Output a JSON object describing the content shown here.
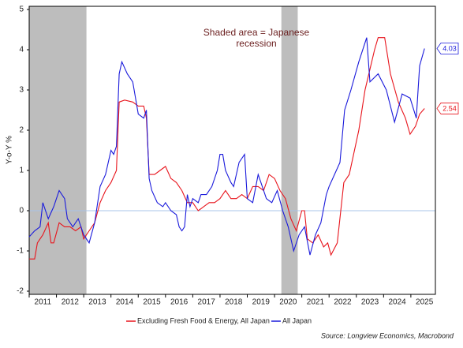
{
  "chart_data": {
    "type": "line",
    "y_label": "Y-o-Y %",
    "annotation_lines": [
      "Shaded area = Japanese",
      "recession"
    ],
    "source": "Source: Longview Economics, Macrobond",
    "xlim": [
      2011.0,
      2025.9
    ],
    "ylim": [
      -2,
      5
    ],
    "yticks": [
      -2,
      -1,
      0,
      1,
      2,
      3,
      4,
      5
    ],
    "xticks": [
      {
        "value": 2011.5,
        "label": "2011"
      },
      {
        "value": 2012.5,
        "label": "2012"
      },
      {
        "value": 2013.5,
        "label": "2013"
      },
      {
        "value": 2014.5,
        "label": "2014"
      },
      {
        "value": 2015.5,
        "label": "2015"
      },
      {
        "value": 2016.5,
        "label": "2016"
      },
      {
        "value": 2017.5,
        "label": "2017"
      },
      {
        "value": 2018.5,
        "label": "2018"
      },
      {
        "value": 2019.5,
        "label": "2019"
      },
      {
        "value": 2020.5,
        "label": "2020"
      },
      {
        "value": 2021.5,
        "label": "2021"
      },
      {
        "value": 2022.5,
        "label": "2022"
      },
      {
        "value": 2023.5,
        "label": "2023"
      },
      {
        "value": 2024.5,
        "label": "2024"
      },
      {
        "value": 2025.5,
        "label": "2025"
      }
    ],
    "recessions": [
      [
        2011.0,
        2013.1
      ],
      [
        2020.25,
        2020.85
      ]
    ],
    "recession_color": "#bdbdbd",
    "zero_line_color": "#a9c4e8",
    "series": [
      {
        "name": "Excluding Fresh Food & Energy, All Japan",
        "color": "#e8141c",
        "x": [
          2011.0,
          2011.2,
          2011.3,
          2011.5,
          2011.7,
          2011.8,
          2011.9,
          2012.1,
          2012.3,
          2012.5,
          2012.7,
          2012.9,
          2013.0,
          2013.2,
          2013.4,
          2013.6,
          2013.8,
          2014.0,
          2014.2,
          2014.3,
          2014.5,
          2014.8,
          2015.0,
          2015.2,
          2015.3,
          2015.4,
          2015.6,
          2015.8,
          2016.0,
          2016.2,
          2016.4,
          2016.6,
          2016.8,
          2017.0,
          2017.2,
          2017.4,
          2017.6,
          2017.8,
          2018.0,
          2018.2,
          2018.4,
          2018.6,
          2018.8,
          2019.0,
          2019.2,
          2019.4,
          2019.6,
          2019.8,
          2020.0,
          2020.2,
          2020.4,
          2020.6,
          2020.8,
          2021.0,
          2021.1,
          2021.2,
          2021.4,
          2021.6,
          2021.8,
          2021.95,
          2022.07,
          2022.3,
          2022.54,
          2022.74,
          2023.09,
          2023.32,
          2023.67,
          2023.8,
          2024.04,
          2024.25,
          2024.54,
          2024.8,
          2024.97,
          2025.17,
          2025.32,
          2025.5
        ],
        "values": [
          -1.2,
          -1.2,
          -0.8,
          -0.6,
          -0.3,
          -0.8,
          -0.8,
          -0.3,
          -0.4,
          -0.4,
          -0.5,
          -0.4,
          -0.7,
          -0.5,
          -0.3,
          0.2,
          0.5,
          0.7,
          1.0,
          2.7,
          2.75,
          2.7,
          2.6,
          2.6,
          2.3,
          0.9,
          0.9,
          1.0,
          1.1,
          0.8,
          0.7,
          0.5,
          0.2,
          0.2,
          0.0,
          0.1,
          0.2,
          0.2,
          0.3,
          0.5,
          0.3,
          0.3,
          0.4,
          0.3,
          0.6,
          0.6,
          0.5,
          0.9,
          0.8,
          0.5,
          0.3,
          -0.2,
          -0.5,
          0.0,
          0.0,
          -0.7,
          -0.8,
          -0.6,
          -0.9,
          -0.8,
          -1.1,
          -0.8,
          0.7,
          0.9,
          2.0,
          3.0,
          4.0,
          4.3,
          4.3,
          3.4,
          2.7,
          2.3,
          1.9,
          2.1,
          2.4,
          2.54
        ]
      },
      {
        "name": "All Japan",
        "color": "#1a1adb",
        "x": [
          2011.0,
          2011.2,
          2011.4,
          2011.5,
          2011.7,
          2011.9,
          2012.1,
          2012.3,
          2012.4,
          2012.6,
          2012.8,
          2013.0,
          2013.2,
          2013.4,
          2013.6,
          2013.8,
          2014.0,
          2014.1,
          2014.2,
          2014.3,
          2014.4,
          2014.6,
          2014.8,
          2014.9,
          2015.0,
          2015.2,
          2015.3,
          2015.4,
          2015.5,
          2015.7,
          2015.9,
          2016.0,
          2016.2,
          2016.4,
          2016.5,
          2016.6,
          2016.7,
          2016.8,
          2016.9,
          2017.0,
          2017.2,
          2017.3,
          2017.5,
          2017.7,
          2017.9,
          2018.0,
          2018.1,
          2018.2,
          2018.4,
          2018.5,
          2018.7,
          2018.9,
          2019.0,
          2019.2,
          2019.4,
          2019.5,
          2019.7,
          2019.9,
          2020.1,
          2020.3,
          2020.5,
          2020.7,
          2020.9,
          2021.1,
          2021.3,
          2021.5,
          2021.7,
          2021.9,
          2022.0,
          2022.2,
          2022.4,
          2022.57,
          2022.8,
          2023.09,
          2023.38,
          2023.5,
          2023.8,
          2024.1,
          2024.4,
          2024.68,
          2024.97,
          2025.2,
          2025.32,
          2025.5
        ],
        "values": [
          -0.65,
          -0.5,
          -0.4,
          0.2,
          -0.2,
          0.1,
          0.5,
          0.3,
          -0.2,
          -0.4,
          -0.2,
          -0.6,
          -0.8,
          -0.3,
          0.6,
          0.9,
          1.5,
          1.4,
          1.6,
          3.4,
          3.7,
          3.4,
          3.2,
          2.8,
          2.4,
          2.3,
          2.5,
          0.8,
          0.5,
          0.2,
          0.1,
          0.2,
          0.0,
          -0.1,
          -0.4,
          -0.5,
          -0.4,
          0.4,
          0.1,
          0.3,
          0.2,
          0.4,
          0.4,
          0.6,
          1.0,
          1.4,
          1.4,
          1.0,
          0.7,
          0.6,
          1.2,
          1.4,
          0.3,
          0.2,
          0.9,
          0.7,
          0.3,
          0.2,
          0.5,
          0.0,
          -0.4,
          -1.0,
          -0.6,
          -0.4,
          -1.1,
          -0.6,
          -0.3,
          0.4,
          0.6,
          0.9,
          1.2,
          2.5,
          3.0,
          3.7,
          4.3,
          3.2,
          3.4,
          3.0,
          2.2,
          2.9,
          2.8,
          2.3,
          3.6,
          4.03
        ]
      }
    ]
  }
}
